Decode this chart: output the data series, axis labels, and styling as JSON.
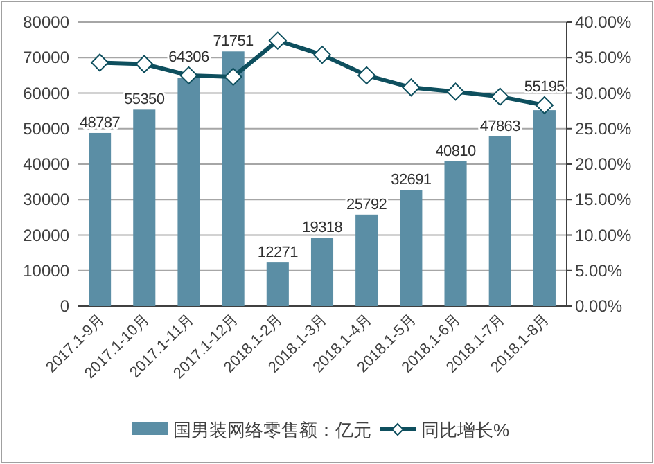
{
  "chart_data": {
    "type": "bar",
    "categories": [
      "2017.1-9月",
      "2017.1-10月",
      "2017.1-11月",
      "2017.1-12月",
      "2018.1-2月",
      "2018.1-3月",
      "2018.1-4月",
      "2018.1-5月",
      "2018.1-6月",
      "2018.1-7月",
      "2018.1-8月"
    ],
    "series": [
      {
        "name": "国男装网络零售额：亿元",
        "color": "#5b8ea5",
        "values": [
          48787,
          55350,
          64306,
          71751,
          12271,
          19318,
          25792,
          32691,
          40810,
          47863,
          55195
        ],
        "value_labels": [
          "48787",
          "55350",
          "64306",
          "71751",
          "12271",
          "19318",
          "25792",
          "32691",
          "40810",
          "47863",
          "55195"
        ]
      },
      {
        "name": "同比增长%",
        "type": "line",
        "axis": "y2",
        "color": "#0e4f5e",
        "marker": "diamond",
        "values": [
          34.3,
          34.1,
          32.5,
          32.3,
          37.4,
          35.4,
          32.5,
          30.8,
          30.2,
          29.5,
          28.3
        ]
      }
    ],
    "ylim": [
      0,
      80000
    ],
    "yticks": [
      0,
      10000,
      20000,
      30000,
      40000,
      50000,
      60000,
      70000,
      80000
    ],
    "y2lim": [
      0,
      40
    ],
    "y2ticks": [
      {
        "value": 0,
        "label": "0.00%"
      },
      {
        "value": 5,
        "label": "5.00%"
      },
      {
        "value": 10,
        "label": "10.00%"
      },
      {
        "value": 15,
        "label": "15.00%"
      },
      {
        "value": 20,
        "label": "20.00%"
      },
      {
        "value": 25,
        "label": "25.00%"
      },
      {
        "value": 30,
        "label": "30.00%"
      },
      {
        "value": 35,
        "label": "35.00%"
      },
      {
        "value": 40,
        "label": "40.00%"
      }
    ],
    "grid": "y",
    "legend": "bottom"
  }
}
